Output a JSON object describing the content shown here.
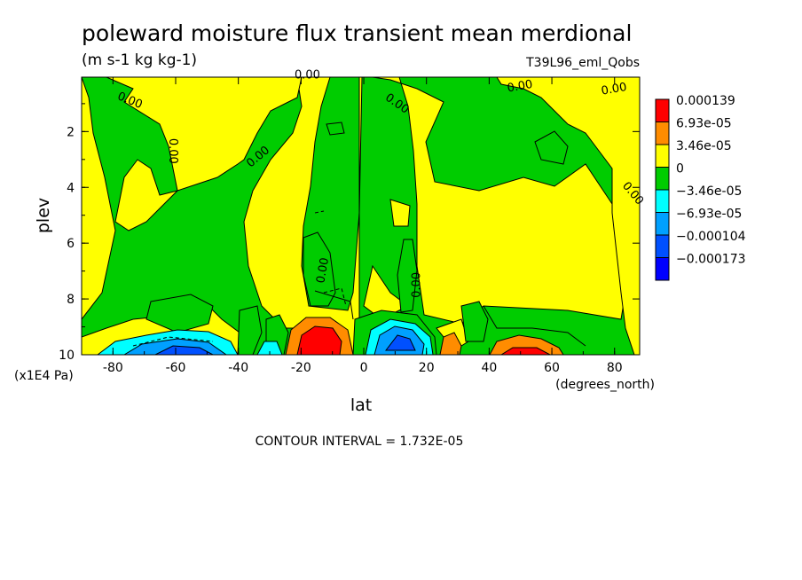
{
  "chart_data": {
    "type": "heatmap",
    "title": "poleward moisture flux transient mean merdional",
    "units": "(m s-1 kg kg-1)",
    "run_label": "T39L96_eml_Qobs",
    "xlabel": "lat",
    "x_units": "(degrees_north)",
    "ylabel": "plev",
    "y_units": "(x1E4 Pa)",
    "x_range": [
      -90,
      88
    ],
    "y_range": [
      0.05,
      10
    ],
    "y_reversed": true,
    "x_ticks": [
      "-80",
      "-60",
      "-40",
      "-20",
      "0",
      "20",
      "40",
      "60",
      "80"
    ],
    "x_tick_values": [
      -80,
      -60,
      -40,
      -20,
      0,
      20,
      40,
      60,
      80
    ],
    "y_ticks": [
      "2",
      "4",
      "6",
      "8",
      "10"
    ],
    "y_tick_values": [
      2,
      4,
      6,
      8,
      10
    ],
    "contour_interval_text": "CONTOUR INTERVAL = 1.732E-05",
    "contour_label": "0.00",
    "legend": {
      "position": "right",
      "labels": [
        "0.000139",
        "6.93e-05",
        "3.46e-05",
        "0",
        "−3.46e-05",
        "−6.93e-05",
        "−0.000104",
        "−0.000173"
      ],
      "colors": [
        "#ff0000",
        "#ff8c00",
        "#ffff00",
        "#00cc00",
        "#00ffff",
        "#00a0ff",
        "#0050ff",
        "#0000ff"
      ],
      "color_level_values": [
        0.000139,
        6.93e-05,
        3.46e-05,
        0,
        -3.46e-05,
        -6.93e-05,
        -0.000104,
        -0.000173
      ]
    },
    "colors": {
      "green": "#00cc00",
      "yellow": "#ffff00",
      "orange": "#ff8c00",
      "red": "#ff0000",
      "cyan": "#00ffff",
      "sky": "#00a0ff",
      "blue": "#0050ff",
      "darkblue": "#0000ff"
    }
  }
}
